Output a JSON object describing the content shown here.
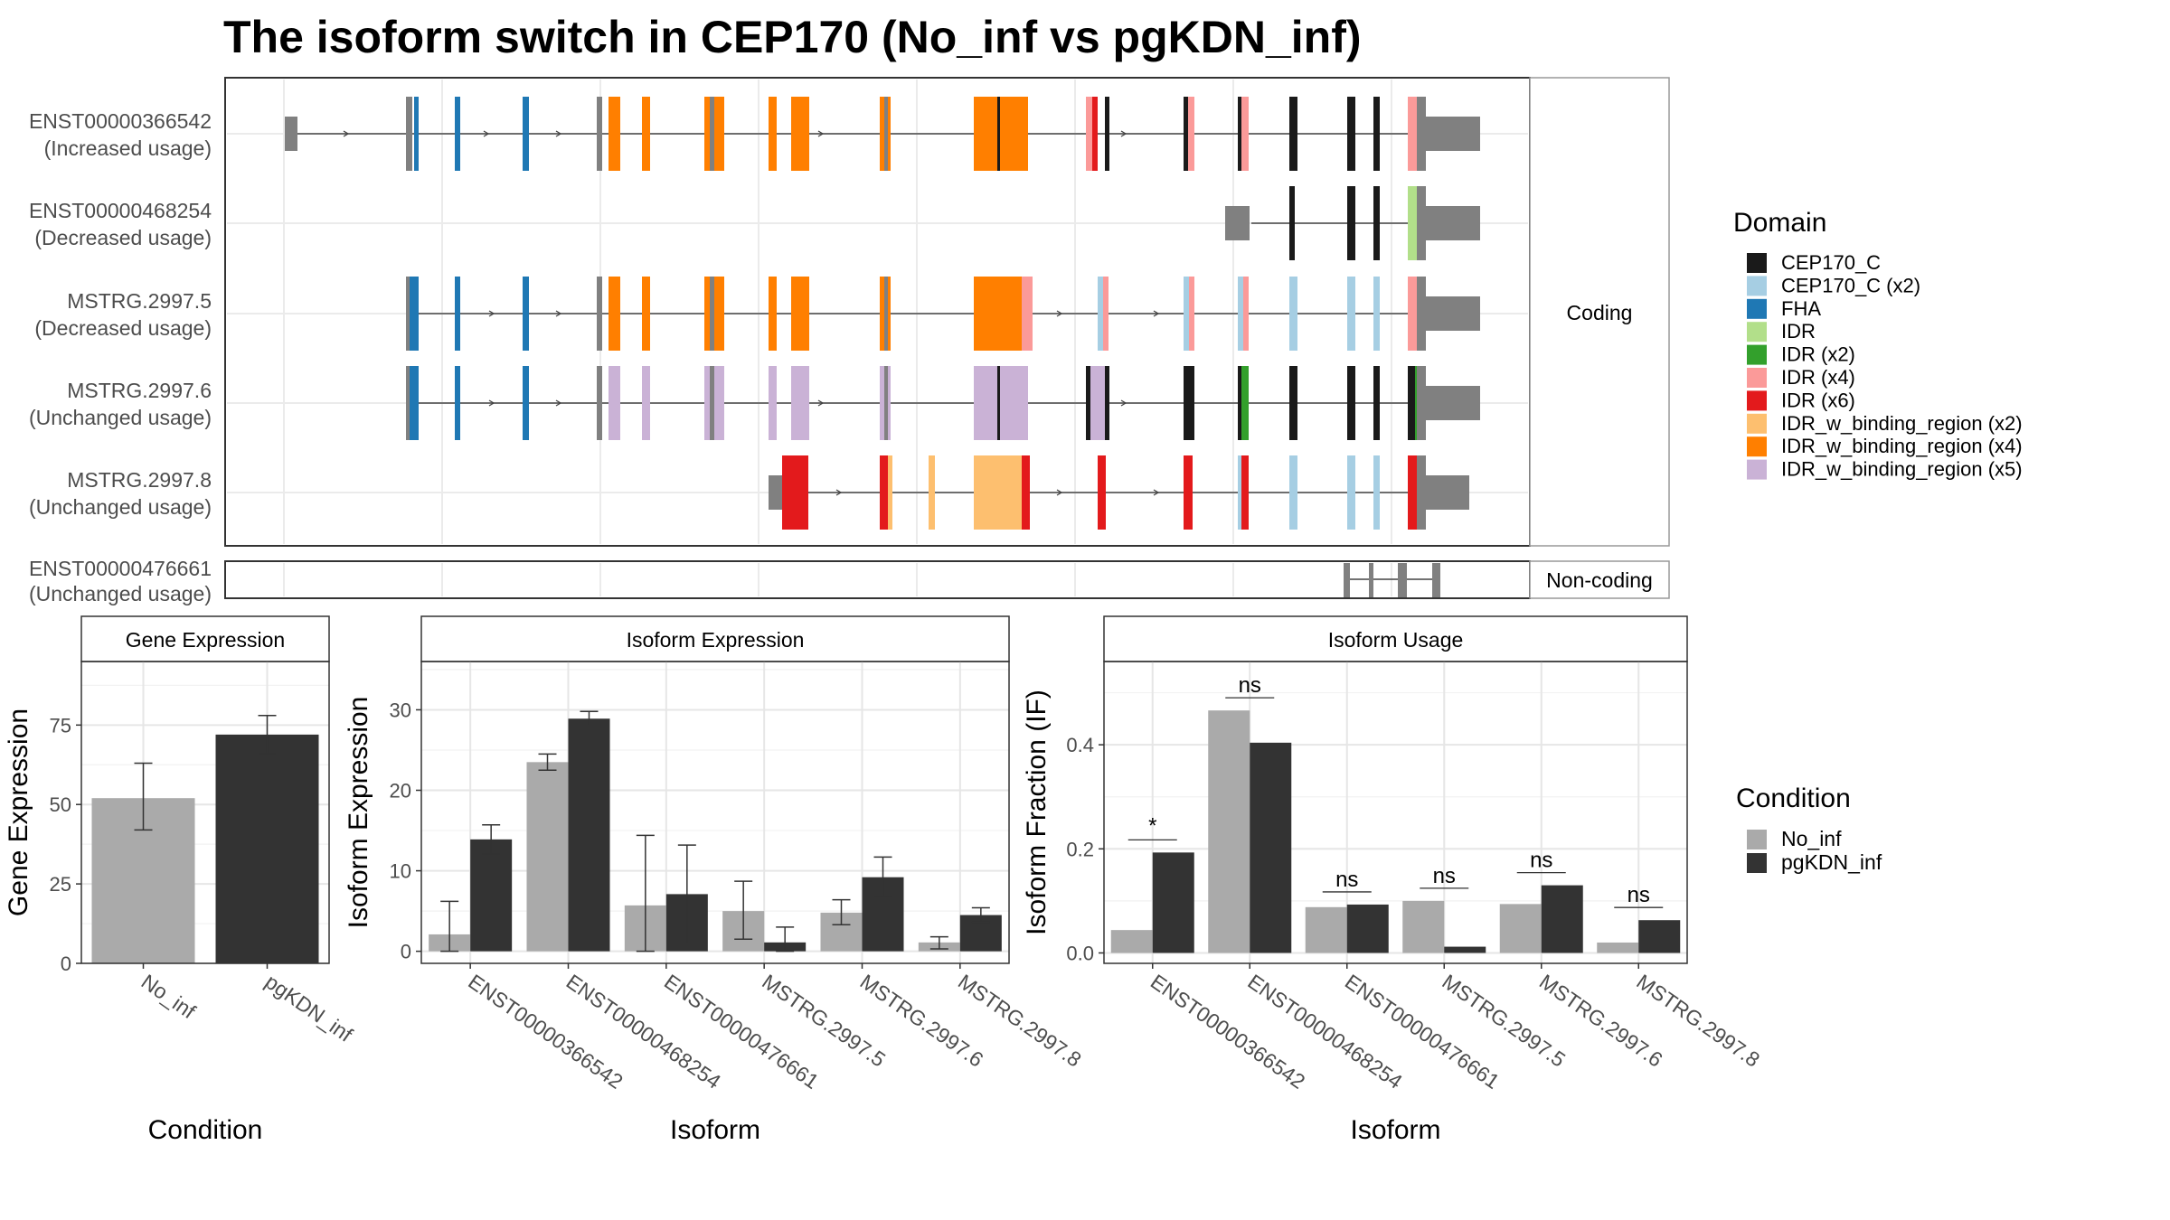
{
  "title": "The isoform switch in CEP170 (No_inf vs pgKDN_inf)",
  "colors": {
    "gray": "#808080",
    "legend": {
      "CEP170_C": "#1a1a1a",
      "CEP170_C (x2)": "#a6cee3",
      "FHA": "#1f78b4",
      "IDR": "#b2df8a",
      "IDR (x2)": "#33a02c",
      "IDR (x4)": "#fb9a99",
      "IDR (x6)": "#e31a1c",
      "IDR_w_binding_region (x2)": "#fdbf6f",
      "IDR_w_binding_region (x4)": "#ff7f00",
      "IDR_w_binding_region (x5)": "#cab2d6"
    },
    "conditions": {
      "No_inf": "#aaaaaa",
      "pgKDN_inf": "#333333"
    }
  },
  "legends": {
    "domain_title": "Domain",
    "domain_items": [
      "CEP170_C",
      "CEP170_C (x2)",
      "FHA",
      "IDR",
      "IDR (x2)",
      "IDR (x4)",
      "IDR (x6)",
      "IDR_w_binding_region (x2)",
      "IDR_w_binding_region (x4)",
      "IDR_w_binding_region (x5)"
    ],
    "condition_title": "Condition",
    "condition_items": [
      "No_inf",
      "pgKDN_inf"
    ]
  },
  "structure": {
    "strip_coding": "Coding",
    "strip_noncoding": "Non-coding",
    "coding": [
      {
        "name": "ENST00000366542",
        "usage": "(Increased usage)"
      },
      {
        "name": "ENST00000468254",
        "usage": "(Decreased usage)"
      },
      {
        "name": "MSTRG.2997.5",
        "usage": "(Decreased usage)"
      },
      {
        "name": "MSTRG.2997.6",
        "usage": "(Unchanged usage)"
      },
      {
        "name": "MSTRG.2997.8",
        "usage": "(Unchanged usage)"
      }
    ],
    "noncoding": [
      {
        "name": "ENST00000476661",
        "usage": "(Unchanged usage)"
      }
    ]
  },
  "chart_data": [
    {
      "type": "bar",
      "title": "Gene Expression",
      "xlabel": "Condition",
      "ylabel": "Gene Expression",
      "categories": [
        "No_inf",
        "pgKDN_inf"
      ],
      "values": [
        52,
        72
      ],
      "err_low": [
        42,
        66
      ],
      "err_high": [
        63,
        78
      ],
      "ylim": [
        0,
        95
      ],
      "yticks": [
        0,
        25,
        50,
        75
      ]
    },
    {
      "type": "bar",
      "title": "Isoform Expression",
      "xlabel": "Isoform",
      "ylabel": "Isoform Expression",
      "categories": [
        "ENST00000366542",
        "ENST00000468254",
        "ENST00000476661",
        "MSTRG.2997.5",
        "MSTRG.2997.6",
        "MSTRG.2997.8"
      ],
      "series": [
        {
          "name": "No_inf",
          "values": [
            2.1,
            23.5,
            5.7,
            5.0,
            4.8,
            1.1
          ],
          "err_low": [
            0,
            22.5,
            0,
            1.5,
            3.3,
            0.3
          ],
          "err_high": [
            6.2,
            24.5,
            14.4,
            8.7,
            6.4,
            1.8
          ]
        },
        {
          "name": "pgKDN_inf",
          "values": [
            13.9,
            28.9,
            7.1,
            1.1,
            9.2,
            4.5
          ],
          "err_low": [
            12.1,
            28,
            1.0,
            0,
            6.8,
            3.6
          ],
          "err_high": [
            15.7,
            29.8,
            13.2,
            3.0,
            11.7,
            5.4
          ]
        }
      ],
      "ylim": [
        -1.5,
        36
      ],
      "yticks": [
        0,
        10,
        20,
        30
      ]
    },
    {
      "type": "bar",
      "title": "Isoform Usage",
      "xlabel": "Isoform",
      "ylabel": "Isoform Fraction (IF)",
      "categories": [
        "ENST00000366542",
        "ENST00000468254",
        "ENST00000476661",
        "MSTRG.2997.5",
        "MSTRG.2997.6",
        "MSTRG.2997.8"
      ],
      "series": [
        {
          "name": "No_inf",
          "values": [
            0.044,
            0.466,
            0.088,
            0.1,
            0.094,
            0.02
          ]
        },
        {
          "name": "pgKDN_inf",
          "values": [
            0.193,
            0.404,
            0.093,
            0.012,
            0.13,
            0.063
          ]
        }
      ],
      "significance": [
        "*",
        "ns",
        "ns",
        "ns",
        "ns",
        "ns"
      ],
      "ylim": [
        -0.02,
        0.56
      ],
      "yticks": [
        0.0,
        0.2,
        0.4
      ],
      "ytick_labels": [
        "0.0",
        "0.2",
        "0.4"
      ]
    }
  ]
}
